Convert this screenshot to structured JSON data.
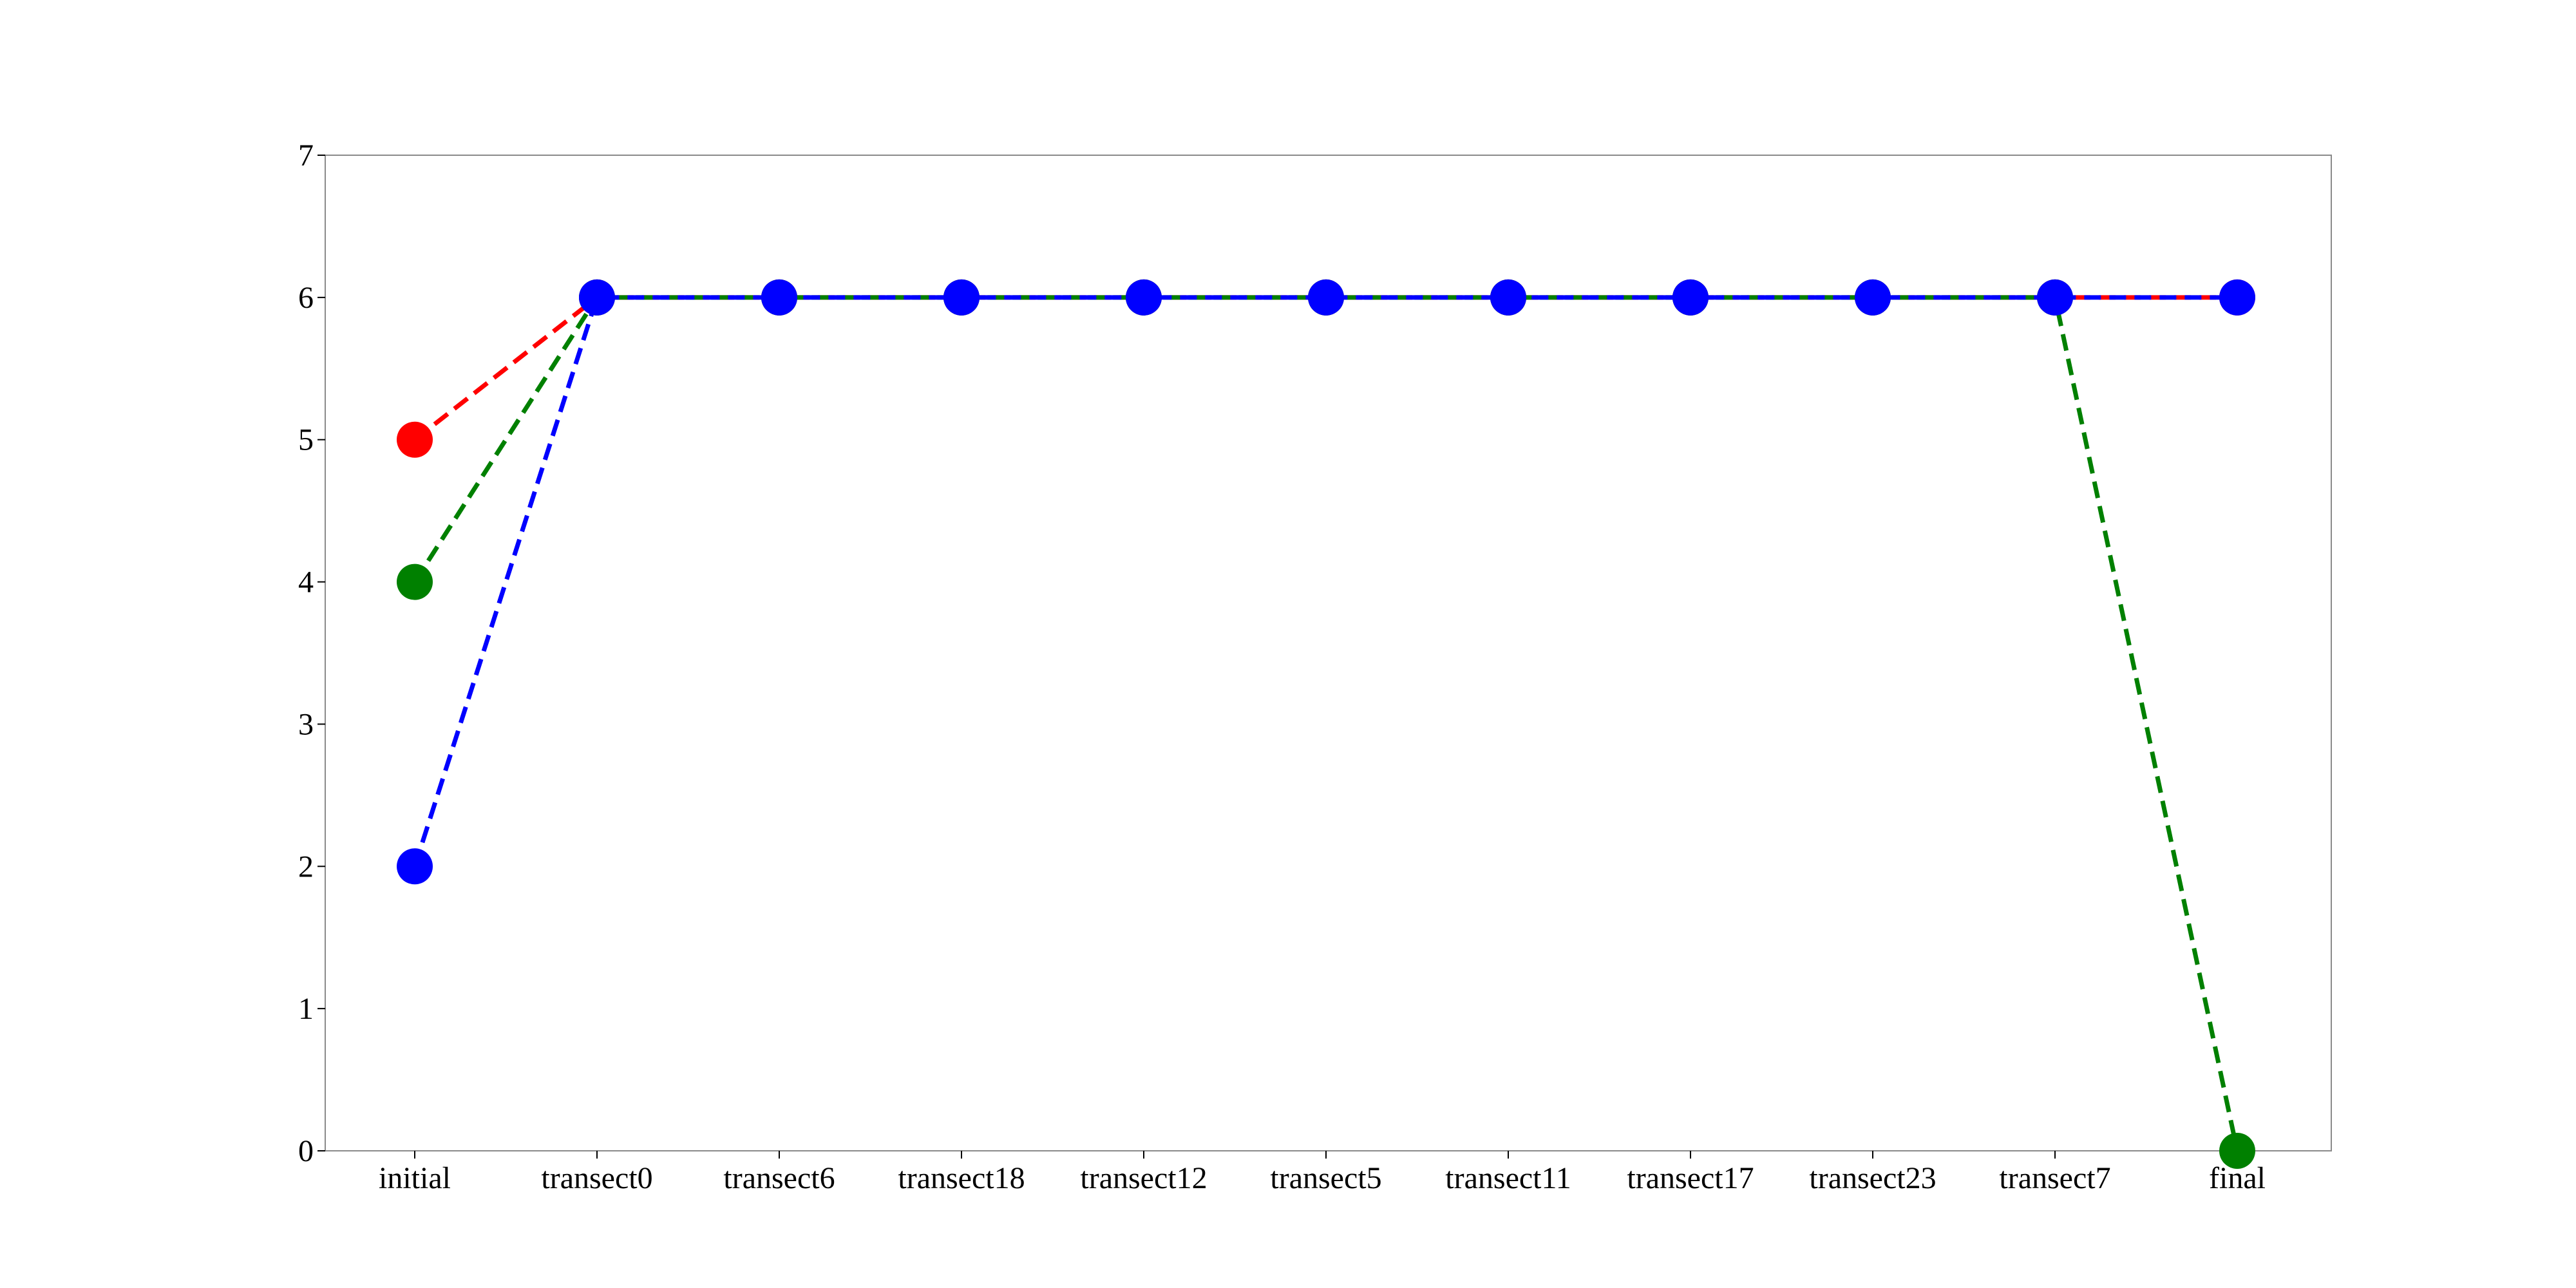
{
  "chart_data": {
    "type": "line",
    "categories": [
      "initial",
      "transect0",
      "transect6",
      "transect18",
      "transect12",
      "transect5",
      "transect11",
      "transect17",
      "transect23",
      "transect7",
      "final"
    ],
    "ylim": [
      0,
      7
    ],
    "yticks": [
      0,
      1,
      2,
      3,
      4,
      5,
      6,
      7
    ],
    "grid": false,
    "legend": "none",
    "series": [
      {
        "color": "#ff0000",
        "line_style": "dashed",
        "values": [
          5,
          6,
          6,
          6,
          6,
          6,
          6,
          6,
          6,
          6,
          6
        ]
      },
      {
        "color": "#008000",
        "line_style": "dashed",
        "values": [
          4,
          6,
          6,
          6,
          6,
          6,
          6,
          6,
          6,
          6,
          0
        ]
      },
      {
        "color": "#0000ff",
        "line_style": "dashed",
        "values": [
          2,
          6,
          6,
          6,
          6,
          6,
          6,
          6,
          6,
          6,
          6
        ]
      }
    ]
  }
}
